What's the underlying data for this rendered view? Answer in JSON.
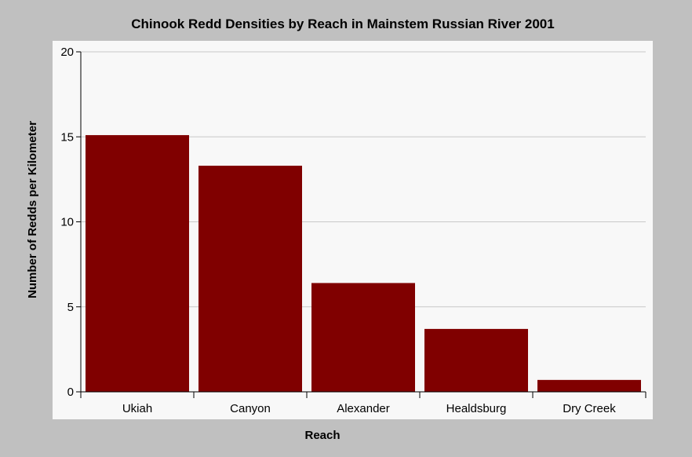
{
  "chart_data": {
    "type": "bar",
    "title": "Chinook Redd Densities by Reach in Mainstem Russian River 2001",
    "xlabel": "Reach",
    "ylabel": "Number of Redds per Kilometer",
    "categories": [
      "Ukiah",
      "Canyon",
      "Alexander",
      "Healdsburg",
      "Dry Creek"
    ],
    "values": [
      15.1,
      13.3,
      6.4,
      3.7,
      0.7
    ],
    "ylim": [
      0,
      20
    ],
    "yticks": [
      "0",
      "5",
      "10",
      "15",
      "20"
    ],
    "grid": true,
    "legend": "none"
  },
  "colors": {
    "bar": "#800000",
    "plot_background": "#f8f8f8",
    "outer_background": "#c0c0c0",
    "gridline": "#c8c8c8"
  }
}
